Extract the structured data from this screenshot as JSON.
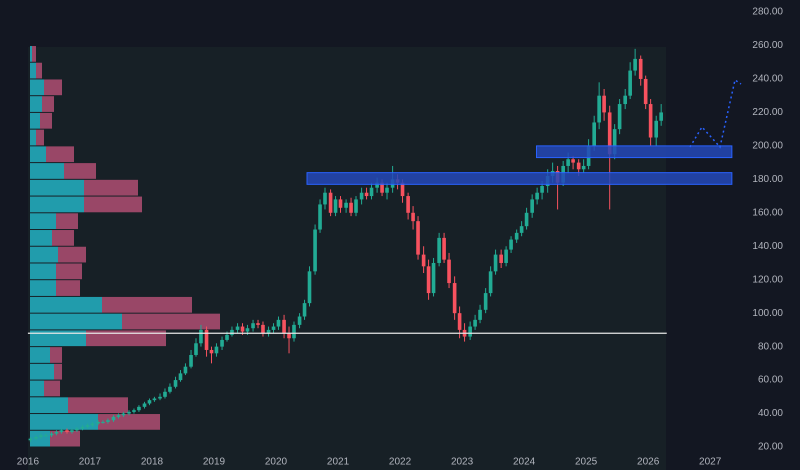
{
  "chart_data": {
    "type": "candlestick",
    "colors": {
      "up": "#22ab94",
      "down": "#f7525f",
      "profile_buy": "#26c6da",
      "profile_sell": "#f06292",
      "zone": "#2449b8",
      "level_line": "#e6e6e6"
    },
    "xlim": [
      2015.55,
      2027.61
    ],
    "ylim": [
      6.25,
      287.2
    ],
    "xticks": [
      2016,
      2017,
      2018,
      2019,
      2020,
      2021,
      2022,
      2023,
      2024,
      2025,
      2026,
      2027
    ],
    "yticks": [
      {
        "value": 20,
        "label": "20.00"
      },
      {
        "value": 40,
        "label": "40.00"
      },
      {
        "value": 60,
        "label": "60.00"
      },
      {
        "value": 80,
        "label": "80.00"
      },
      {
        "value": 100,
        "label": "100.00"
      },
      {
        "value": 120,
        "label": "120.00"
      },
      {
        "value": 140,
        "label": "140.00"
      },
      {
        "value": 160,
        "label": "160.00"
      },
      {
        "value": 180,
        "label": "180.00"
      },
      {
        "value": 200,
        "label": "200.00"
      },
      {
        "value": 220,
        "label": "220.00"
      },
      {
        "value": 240,
        "label": "240.00"
      },
      {
        "value": 260,
        "label": "260.00"
      },
      {
        "value": 280,
        "label": "280.00"
      }
    ],
    "x": [
      2016.04,
      2016.13,
      2016.21,
      2016.29,
      2016.38,
      2016.46,
      2016.54,
      2016.63,
      2016.71,
      2016.79,
      2016.88,
      2016.96,
      2017.04,
      2017.13,
      2017.21,
      2017.29,
      2017.38,
      2017.46,
      2017.54,
      2017.63,
      2017.71,
      2017.79,
      2017.88,
      2017.96,
      2018.04,
      2018.13,
      2018.21,
      2018.29,
      2018.38,
      2018.46,
      2018.54,
      2018.63,
      2018.71,
      2018.79,
      2018.88,
      2018.96,
      2019.04,
      2019.13,
      2019.21,
      2019.29,
      2019.38,
      2019.46,
      2019.54,
      2019.63,
      2019.71,
      2019.79,
      2019.88,
      2019.96,
      2020.04,
      2020.13,
      2020.21,
      2020.29,
      2020.38,
      2020.46,
      2020.54,
      2020.63,
      2020.71,
      2020.79,
      2020.88,
      2020.96,
      2021.04,
      2021.13,
      2021.21,
      2021.29,
      2021.38,
      2021.46,
      2021.54,
      2021.63,
      2021.71,
      2021.79,
      2021.88,
      2021.96,
      2022.04,
      2022.13,
      2022.21,
      2022.29,
      2022.38,
      2022.46,
      2022.54,
      2022.63,
      2022.71,
      2022.79,
      2022.88,
      2022.96,
      2023.04,
      2023.13,
      2023.21,
      2023.29,
      2023.38,
      2023.46,
      2023.54,
      2023.63,
      2023.71,
      2023.79,
      2023.88,
      2023.96,
      2024.04,
      2024.13,
      2024.21,
      2024.29,
      2024.38,
      2024.46,
      2024.54,
      2024.63,
      2024.71,
      2024.79,
      2024.88,
      2024.96,
      2025.04,
      2025.13,
      2025.21,
      2025.29,
      2025.38,
      2025.46,
      2025.54,
      2025.63,
      2025.71,
      2025.79,
      2025.88,
      2025.96,
      2026.04,
      2026.13,
      2026.21
    ],
    "open": [
      24,
      25,
      26,
      27,
      27,
      28,
      29,
      30,
      29,
      30,
      31,
      32,
      33,
      34,
      35,
      35,
      36,
      38,
      39,
      40,
      41,
      42,
      44,
      46,
      48,
      49,
      50,
      53,
      56,
      60,
      64,
      68,
      75,
      82,
      90,
      78,
      76,
      80,
      84,
      87,
      90,
      92,
      89,
      91,
      94,
      93,
      88,
      90,
      92,
      96,
      88,
      85,
      93,
      98,
      106,
      125,
      150,
      165,
      172,
      160,
      168,
      163,
      166,
      160,
      168,
      172,
      170,
      175,
      178,
      172,
      175,
      180,
      178,
      170,
      160,
      155,
      135,
      128,
      112,
      130,
      145,
      132,
      118,
      100,
      90,
      86,
      92,
      96,
      102,
      112,
      125,
      135,
      130,
      138,
      144,
      148,
      152,
      160,
      168,
      172,
      176,
      182,
      185,
      178,
      188,
      192,
      190,
      186,
      188,
      200,
      214,
      230,
      220,
      195,
      210,
      225,
      230,
      245,
      252,
      240,
      225,
      205,
      215
    ],
    "high": [
      26,
      27,
      28,
      28,
      29,
      30,
      31,
      31,
      31,
      32,
      33,
      34,
      35,
      36,
      36,
      37,
      39,
      40,
      41,
      42,
      43,
      45,
      47,
      49,
      50,
      52,
      55,
      58,
      62,
      66,
      70,
      78,
      85,
      93,
      92,
      80,
      82,
      86,
      89,
      92,
      94,
      94,
      93,
      96,
      96,
      95,
      92,
      94,
      98,
      99,
      92,
      95,
      100,
      108,
      128,
      153,
      168,
      175,
      174,
      170,
      170,
      168,
      169,
      170,
      175,
      175,
      178,
      181,
      180,
      178,
      188,
      183,
      180,
      172,
      164,
      158,
      140,
      132,
      133,
      148,
      148,
      136,
      122,
      104,
      94,
      95,
      99,
      105,
      115,
      128,
      138,
      138,
      140,
      146,
      150,
      155,
      163,
      171,
      175,
      179,
      186,
      190,
      188,
      191,
      196,
      194,
      192,
      192,
      204,
      218,
      238,
      234,
      224,
      213,
      228,
      234,
      250,
      258,
      254,
      242,
      228,
      218,
      225
    ],
    "low": [
      23,
      24,
      25,
      26,
      26,
      27,
      28,
      28,
      28,
      29,
      30,
      31,
      32,
      33,
      34,
      34,
      35,
      37,
      38,
      39,
      40,
      41,
      43,
      45,
      47,
      48,
      49,
      52,
      55,
      59,
      63,
      67,
      74,
      80,
      74,
      70,
      74,
      78,
      83,
      86,
      88,
      87,
      87,
      89,
      91,
      86,
      86,
      88,
      90,
      85,
      76,
      83,
      91,
      96,
      104,
      123,
      148,
      162,
      158,
      158,
      160,
      160,
      158,
      158,
      165,
      168,
      168,
      172,
      170,
      168,
      172,
      174,
      166,
      156,
      150,
      132,
      124,
      108,
      110,
      128,
      130,
      115,
      96,
      85,
      83,
      84,
      90,
      94,
      100,
      110,
      123,
      127,
      128,
      136,
      142,
      146,
      150,
      157,
      165,
      168,
      172,
      178,
      162,
      176,
      184,
      186,
      182,
      184,
      186,
      197,
      210,
      215,
      162,
      192,
      207,
      222,
      228,
      242,
      236,
      222,
      200,
      200,
      212
    ],
    "close": [
      25,
      26,
      27,
      27,
      28,
      29,
      30,
      29,
      30,
      31,
      32,
      33,
      34,
      35,
      35,
      36,
      38,
      39,
      40,
      41,
      42,
      44,
      46,
      48,
      49,
      50,
      53,
      56,
      60,
      64,
      68,
      75,
      82,
      90,
      78,
      76,
      80,
      84,
      87,
      90,
      92,
      89,
      91,
      94,
      93,
      88,
      90,
      92,
      96,
      88,
      85,
      93,
      98,
      106,
      125,
      150,
      165,
      172,
      160,
      168,
      163,
      166,
      160,
      168,
      172,
      170,
      175,
      178,
      172,
      175,
      180,
      178,
      170,
      160,
      155,
      135,
      128,
      112,
      130,
      145,
      132,
      118,
      100,
      90,
      86,
      92,
      96,
      102,
      112,
      125,
      135,
      130,
      138,
      144,
      148,
      152,
      160,
      168,
      172,
      176,
      182,
      185,
      178,
      188,
      192,
      190,
      186,
      188,
      200,
      214,
      230,
      220,
      195,
      210,
      225,
      230,
      245,
      252,
      240,
      225,
      205,
      215,
      220
    ],
    "volume_profile": {
      "bins": [
        20,
        30,
        40,
        50,
        60,
        70,
        80,
        90,
        100,
        110,
        120,
        130,
        140,
        150,
        160,
        170,
        180,
        190,
        200,
        210,
        220,
        230,
        240,
        250,
        260
      ],
      "buy": [
        20,
        68,
        38,
        14,
        24,
        20,
        56,
        92,
        72,
        26,
        26,
        28,
        22,
        26,
        54,
        54,
        34,
        16,
        6,
        10,
        12,
        14,
        6,
        2
      ],
      "sell": [
        30,
        62,
        60,
        16,
        8,
        12,
        80,
        98,
        90,
        24,
        26,
        28,
        22,
        22,
        58,
        54,
        32,
        28,
        8,
        12,
        12,
        18,
        6,
        4
      ]
    },
    "zones": [
      {
        "x0": 2020.5,
        "x1": 2027.35,
        "y0": 177,
        "y1": 184
      },
      {
        "x0": 2024.2,
        "x1": 2027.35,
        "y0": 193,
        "y1": 200
      }
    ],
    "level": {
      "value": 88,
      "x0": 2016,
      "x1": 2026.3
    }
  }
}
